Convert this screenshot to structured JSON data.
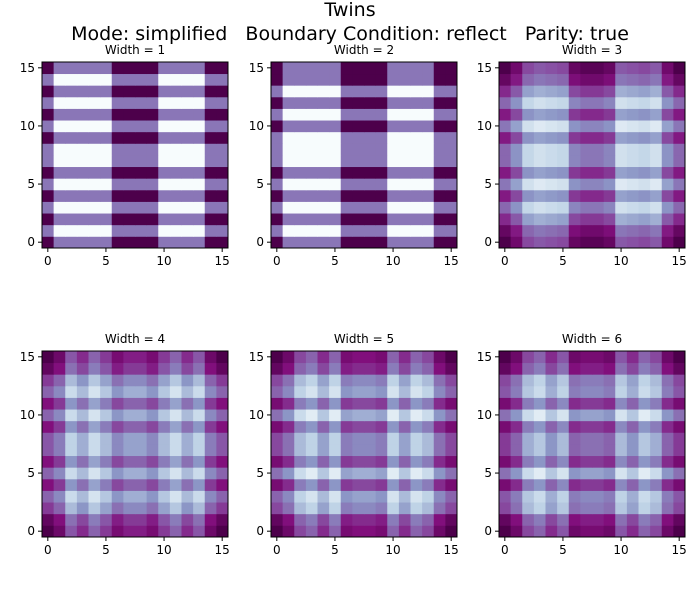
{
  "figure": {
    "title": "Twins",
    "subtitle": "Mode: simplified   Boundary Condition: reflect   Parity: true"
  },
  "chart_data": [
    {
      "type": "heatmap",
      "title": "Width = 1",
      "xlim": [
        -0.5,
        15.5
      ],
      "ylim": [
        -0.5,
        15.5
      ],
      "xticks": [
        0,
        5,
        10,
        15
      ],
      "yticks": [
        0,
        5,
        10,
        15
      ],
      "grid": false,
      "row_pattern": [
        1,
        0,
        1,
        0,
        1,
        0,
        1,
        0,
        0,
        1,
        0,
        1,
        0,
        1,
        0,
        1
      ],
      "col_pattern": [
        1,
        0,
        0,
        0,
        0,
        0,
        1,
        1,
        1,
        1,
        0,
        0,
        0,
        0,
        1,
        1
      ],
      "values_note": "cell value = row_pattern[y] + col_pattern[x]"
    },
    {
      "type": "heatmap",
      "title": "Width = 2",
      "xlim": [
        -0.5,
        15.5
      ],
      "ylim": [
        -0.5,
        15.5
      ],
      "xticks": [
        0,
        5,
        10,
        15
      ],
      "yticks": [
        0,
        5,
        10,
        15
      ],
      "grid": false,
      "row_pattern": [
        1,
        0,
        1,
        0,
        1,
        0,
        1,
        0,
        0,
        0,
        1,
        0,
        1,
        0,
        1,
        1
      ],
      "col_pattern": [
        1,
        0,
        0,
        0,
        0,
        0,
        1,
        1,
        1,
        1,
        0,
        0,
        0,
        0,
        1,
        1
      ]
    },
    {
      "type": "heatmap",
      "title": "Width = 3",
      "xlim": [
        -0.5,
        15.5
      ],
      "ylim": [
        -0.5,
        15.5
      ],
      "xticks": [
        0,
        5,
        10,
        15
      ],
      "yticks": [
        0,
        5,
        10,
        15
      ],
      "grid": false,
      "row_pattern": [
        1.2,
        1,
        0.6,
        0.2,
        0.7,
        0.1,
        0.7,
        0.2,
        0.2,
        0.7,
        0.1,
        0.7,
        0.2,
        0.6,
        1,
        1.2
      ],
      "col_pattern": [
        1,
        0.7,
        0.2,
        0.1,
        0.15,
        0.2,
        0.8,
        0.9,
        0.9,
        0.8,
        0.1,
        0.15,
        0.2,
        0.1,
        0.7,
        1
      ]
    },
    {
      "type": "heatmap",
      "title": "Width = 4",
      "xlim": [
        -0.5,
        15.5
      ],
      "ylim": [
        -0.5,
        15.5
      ],
      "xticks": [
        0,
        5,
        10,
        15
      ],
      "yticks": [
        0,
        5,
        10,
        15
      ],
      "grid": false,
      "row_pattern": [
        1.3,
        1.1,
        0.5,
        0.2,
        0.8,
        0.2,
        0.8,
        0.3,
        0.3,
        0.8,
        0.2,
        0.8,
        0.2,
        0.5,
        1.1,
        1.3
      ],
      "col_pattern": [
        1.2,
        0.9,
        0.2,
        0.5,
        0.1,
        0.4,
        0.8,
        0.6,
        0.6,
        0.8,
        0.4,
        0.1,
        0.5,
        0.2,
        0.9,
        1.2
      ]
    },
    {
      "type": "heatmap",
      "title": "Width = 5",
      "xlim": [
        -0.5,
        15.5
      ],
      "ylim": [
        -0.5,
        15.5
      ],
      "xticks": [
        0,
        5,
        10,
        15
      ],
      "yticks": [
        0,
        5,
        10,
        15
      ],
      "grid": false,
      "row_pattern": [
        1.3,
        1.1,
        0.4,
        0.2,
        0.9,
        0.1,
        0.9,
        0.4,
        0.4,
        0.9,
        0.1,
        0.9,
        0.2,
        0.4,
        1.1,
        1.3
      ],
      "col_pattern": [
        1.2,
        0.9,
        0.3,
        0.1,
        0.5,
        0.1,
        0.8,
        0.7,
        0.7,
        0.8,
        0.1,
        0.5,
        0.1,
        0.3,
        0.9,
        1.2
      ]
    },
    {
      "type": "heatmap",
      "title": "Width = 6",
      "xlim": [
        -0.5,
        15.5
      ],
      "ylim": [
        -0.5,
        15.5
      ],
      "xticks": [
        0,
        5,
        10,
        15
      ],
      "yticks": [
        0,
        5,
        10,
        15
      ],
      "grid": false,
      "row_pattern": [
        1.3,
        1.1,
        0.4,
        0.3,
        0.9,
        0.1,
        0.9,
        0.5,
        0.5,
        0.9,
        0.1,
        0.9,
        0.3,
        0.4,
        1.1,
        1.3
      ],
      "col_pattern": [
        1.2,
        0.9,
        0.3,
        0.1,
        0.5,
        0.2,
        0.9,
        0.8,
        0.8,
        0.9,
        0.2,
        0.5,
        0.1,
        0.3,
        0.9,
        1.2
      ]
    }
  ],
  "colors": {
    "scale": [
      "#f7fcfd",
      "#bfd3e6",
      "#8c96c6",
      "#8856a7",
      "#810f7c",
      "#4d004b"
    ],
    "axis": "#000000"
  }
}
